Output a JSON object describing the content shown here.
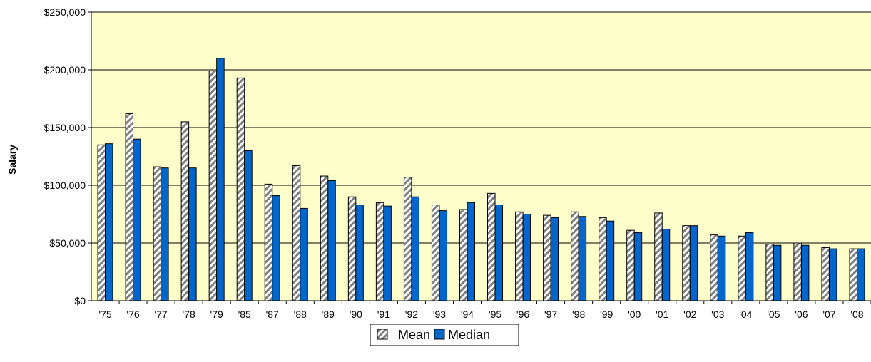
{
  "chart_data": {
    "type": "bar",
    "title": "",
    "xlabel": "",
    "ylabel": "Salary",
    "ylim": [
      0,
      250000
    ],
    "yticks": [
      0,
      50000,
      100000,
      150000,
      200000,
      250000
    ],
    "ytick_labels": [
      "$0",
      "$50,000",
      "$100,000",
      "$150,000",
      "$200,000",
      "$250,000"
    ],
    "grid": true,
    "legend_position": "bottom-center",
    "categories": [
      "'75",
      "'76",
      "'77",
      "'78",
      "'79",
      "'85",
      "'87",
      "'88",
      "'89",
      "'90",
      "'91",
      "'92",
      "'93",
      "'94",
      "'95",
      "'96",
      "'97",
      "'98",
      "'99",
      "'00",
      "'01",
      "'02",
      "'03",
      "'04",
      "'05",
      "'06",
      "'07",
      "'08"
    ],
    "series": [
      {
        "name": "Mean",
        "pattern": "diagonal-stripes",
        "color": "#d9d9d9",
        "values": [
          135000,
          162000,
          116000,
          155000,
          199000,
          193000,
          101000,
          117000,
          108000,
          90000,
          85000,
          107000,
          83000,
          79000,
          93000,
          77000,
          74000,
          77000,
          72000,
          61000,
          76000,
          65000,
          57000,
          56000,
          49000,
          50000,
          46000,
          45000
        ]
      },
      {
        "name": "Median",
        "pattern": "solid",
        "color": "#0066cc",
        "values": [
          136000,
          140000,
          115000,
          115000,
          210000,
          130000,
          91000,
          80000,
          104000,
          83000,
          82000,
          90000,
          78000,
          85000,
          83000,
          75000,
          72000,
          73000,
          69000,
          59000,
          62000,
          65000,
          56000,
          59000,
          48000,
          48000,
          45000,
          45000
        ]
      }
    ]
  },
  "colors": {
    "plot_background": "#ffffcc",
    "gridline": "#000000"
  }
}
